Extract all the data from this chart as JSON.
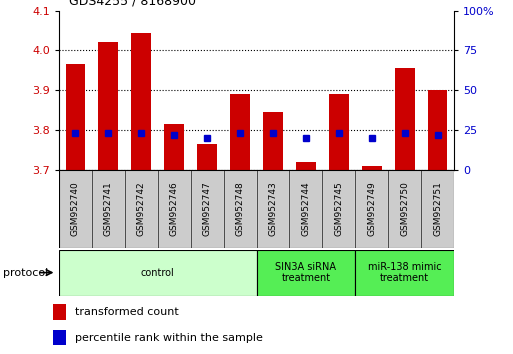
{
  "title": "GDS4255 / 8168900",
  "samples": [
    "GSM952740",
    "GSM952741",
    "GSM952742",
    "GSM952746",
    "GSM952747",
    "GSM952748",
    "GSM952743",
    "GSM952744",
    "GSM952745",
    "GSM952749",
    "GSM952750",
    "GSM952751"
  ],
  "transformed_counts": [
    3.965,
    4.02,
    4.045,
    3.815,
    3.765,
    3.89,
    3.845,
    3.72,
    3.89,
    3.71,
    3.955,
    3.9
  ],
  "percentile_ranks": [
    23,
    23,
    23,
    22,
    20,
    23,
    23,
    20,
    23,
    20,
    23,
    22
  ],
  "groups": [
    {
      "label": "control",
      "start": 0,
      "end": 5,
      "color": "#ccffcc"
    },
    {
      "label": "SIN3A siRNA\ntreatment",
      "start": 6,
      "end": 8,
      "color": "#55ee55"
    },
    {
      "label": "miR-138 mimic\ntreatment",
      "start": 9,
      "end": 11,
      "color": "#55ee55"
    }
  ],
  "ylim_left": [
    3.7,
    4.1
  ],
  "ylim_right": [
    0,
    100
  ],
  "yticks_left": [
    3.7,
    3.8,
    3.9,
    4.0,
    4.1
  ],
  "yticks_right": [
    0,
    25,
    50,
    75,
    100
  ],
  "yticklabels_right": [
    "0",
    "25",
    "50",
    "75",
    "100%"
  ],
  "bar_color": "#cc0000",
  "marker_color": "#0000cc",
  "bar_width": 0.6,
  "tick_label_color_left": "#cc0000",
  "tick_label_color_right": "#0000cc",
  "legend_items": [
    {
      "label": "transformed count",
      "color": "#cc0000"
    },
    {
      "label": "percentile rank within the sample",
      "color": "#0000cc"
    }
  ],
  "protocol_label": "protocol",
  "base_value": 3.7,
  "sample_box_color": "#cccccc"
}
